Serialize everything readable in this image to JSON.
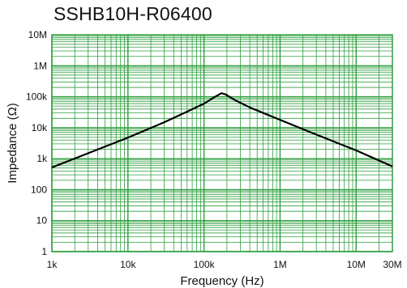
{
  "chart_data": {
    "type": "line",
    "title": "SSHB10H-R06400",
    "xlabel": "Frequency (Hz)",
    "ylabel": "Impedance (Ω)",
    "x_scale": "log",
    "y_scale": "log",
    "xlim": [
      1000,
      30000000
    ],
    "ylim": [
      1,
      10000000
    ],
    "x_tick_labels": [
      "1k",
      "10k",
      "100k",
      "1M",
      "10M",
      "30M"
    ],
    "x_tick_values": [
      1000,
      10000,
      100000,
      1000000,
      10000000,
      30000000
    ],
    "y_tick_labels": [
      "1",
      "10",
      "100",
      "1k",
      "10k",
      "100k",
      "1M",
      "10M"
    ],
    "y_tick_values": [
      1,
      10,
      100,
      1000,
      10000,
      100000,
      1000000,
      10000000
    ],
    "grid": true,
    "colors": {
      "grid": "#2e9e3e",
      "line": "#000000"
    },
    "series": [
      {
        "x": [
          1000,
          3000,
          10000,
          30000,
          60000,
          100000,
          140000,
          170000,
          190000,
          250000,
          400000,
          1000000,
          3000000,
          10000000,
          30000000
        ],
        "y": [
          520,
          1500,
          4800,
          15000,
          33000,
          60000,
          100000,
          130000,
          120000,
          80000,
          45000,
          18000,
          6000,
          1850,
          560
        ]
      }
    ]
  }
}
